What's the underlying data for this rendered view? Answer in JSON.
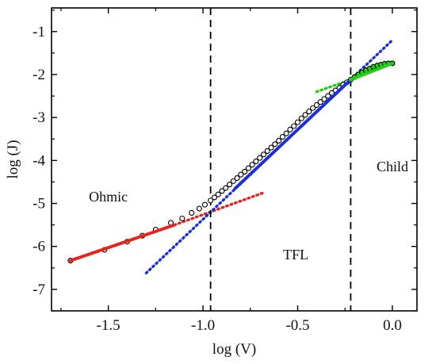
{
  "chart_data": {
    "type": "scatter",
    "xlabel": "log (V)",
    "ylabel": "log (J)",
    "xlim": [
      -1.8,
      0.13
    ],
    "ylim": [
      -7.5,
      -0.45
    ],
    "x_ticks": [
      -1.5,
      -1.0,
      -0.5,
      0.0
    ],
    "x_tick_labels": [
      "-1.5",
      "-1.0",
      "-0.5",
      "0.0"
    ],
    "y_ticks": [
      -1,
      -2,
      -3,
      -4,
      -5,
      -6,
      -7
    ],
    "y_tick_labels": [
      "-1",
      "-2",
      "-3",
      "-4",
      "-5",
      "-6",
      "-7"
    ],
    "grid": false,
    "regions": [
      {
        "label": "Ohmic",
        "x": -1.5,
        "y": -4.95
      },
      {
        "label": "TFL",
        "x": -0.51,
        "y": -6.3
      },
      {
        "label": "Child",
        "x": 0.0,
        "y": -4.25
      }
    ],
    "boundaries": [
      -0.96,
      -0.22
    ],
    "measured_points": {
      "marker": "open-circle",
      "x": [
        -1.7,
        -1.52,
        -1.4,
        -1.32,
        -1.25,
        -1.17,
        -1.11,
        -1.06,
        -1.02,
        -0.99,
        -0.96,
        -0.94,
        -0.92,
        -0.9,
        -0.88,
        -0.86,
        -0.84,
        -0.82,
        -0.8,
        -0.78,
        -0.76,
        -0.74,
        -0.72,
        -0.7,
        -0.68,
        -0.66,
        -0.64,
        -0.62,
        -0.6,
        -0.58,
        -0.56,
        -0.54,
        -0.52,
        -0.5,
        -0.48,
        -0.46,
        -0.44,
        -0.42,
        -0.4,
        -0.38,
        -0.36,
        -0.34,
        -0.32,
        -0.3,
        -0.28,
        -0.26,
        -0.24,
        -0.22,
        -0.2,
        -0.18,
        -0.16,
        -0.14,
        -0.12,
        -0.1,
        -0.08,
        -0.06,
        -0.04,
        -0.02,
        0.0
      ],
      "y": [
        -6.33,
        -6.08,
        -5.89,
        -5.75,
        -5.61,
        -5.45,
        -5.35,
        -5.22,
        -5.12,
        -5.03,
        -4.93,
        -4.86,
        -4.79,
        -4.71,
        -4.64,
        -4.56,
        -4.48,
        -4.41,
        -4.33,
        -4.26,
        -4.18,
        -4.1,
        -4.02,
        -3.94,
        -3.86,
        -3.78,
        -3.7,
        -3.62,
        -3.54,
        -3.45,
        -3.37,
        -3.28,
        -3.2,
        -3.11,
        -3.02,
        -2.94,
        -2.86,
        -2.78,
        -2.71,
        -2.64,
        -2.57,
        -2.5,
        -2.43,
        -2.37,
        -2.31,
        -2.24,
        -2.18,
        -2.12,
        -2.06,
        -2.0,
        -1.95,
        -1.9,
        -1.86,
        -1.82,
        -1.79,
        -1.77,
        -1.75,
        -1.74,
        -1.74
      ]
    },
    "fits": [
      {
        "region": "Ohmic",
        "style": "solid",
        "color": "#e8231a",
        "x": [
          -1.7,
          -1.15
        ],
        "y": [
          -6.33,
          -5.5
        ]
      },
      {
        "region": "Ohmic",
        "style": "dotted",
        "color": "#e8231a",
        "x": [
          -1.15,
          -0.68
        ],
        "y": [
          -5.5,
          -4.75
        ]
      },
      {
        "region": "TFL",
        "style": "solid",
        "color": "#1a2ee0",
        "x": [
          -0.83,
          -0.22
        ],
        "y": [
          -4.65,
          -2.12
        ]
      },
      {
        "region": "TFL",
        "style": "dotted",
        "color": "#1a2ee0",
        "x": [
          -1.3,
          0.0
        ],
        "y": [
          -6.62,
          -1.2
        ]
      },
      {
        "region": "Child",
        "style": "solid",
        "color": "#22d014",
        "x": [
          -0.22,
          0.0
        ],
        "y": [
          -2.12,
          -1.74
        ]
      },
      {
        "region": "Child",
        "style": "dotted",
        "color": "#22d014",
        "x": [
          -0.4,
          -0.22
        ],
        "y": [
          -2.4,
          -2.12
        ]
      }
    ]
  }
}
